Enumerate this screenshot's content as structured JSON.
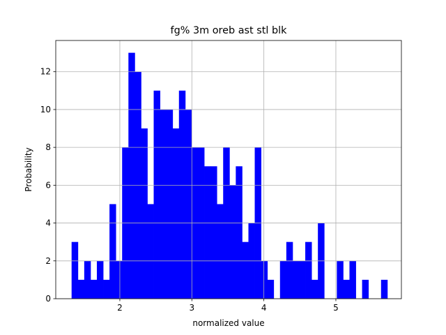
{
  "chart_data": {
    "type": "bar",
    "title": "fg% 3m oreb ast stl blk",
    "xlabel": "normalized value",
    "ylabel": "Probability",
    "xlim": [
      1.11,
      5.91
    ],
    "ylim": [
      0,
      13.65
    ],
    "xticks": [
      2,
      3,
      4,
      5
    ],
    "yticks": [
      0,
      2,
      4,
      6,
      8,
      10,
      12
    ],
    "grid": true,
    "bar_color": "#0000ff",
    "bin_start": 1.33,
    "bin_width": 0.0877,
    "values": [
      3,
      1,
      2,
      1,
      2,
      1,
      5,
      2,
      8,
      13,
      12,
      9,
      5,
      11,
      10,
      10,
      9,
      11,
      10,
      8,
      8,
      7,
      7,
      5,
      8,
      6,
      7,
      3,
      4,
      8,
      2,
      1,
      0,
      2,
      3,
      2,
      2,
      3,
      1,
      4,
      0,
      0,
      2,
      1,
      2,
      0,
      1,
      0,
      0,
      1
    ]
  }
}
